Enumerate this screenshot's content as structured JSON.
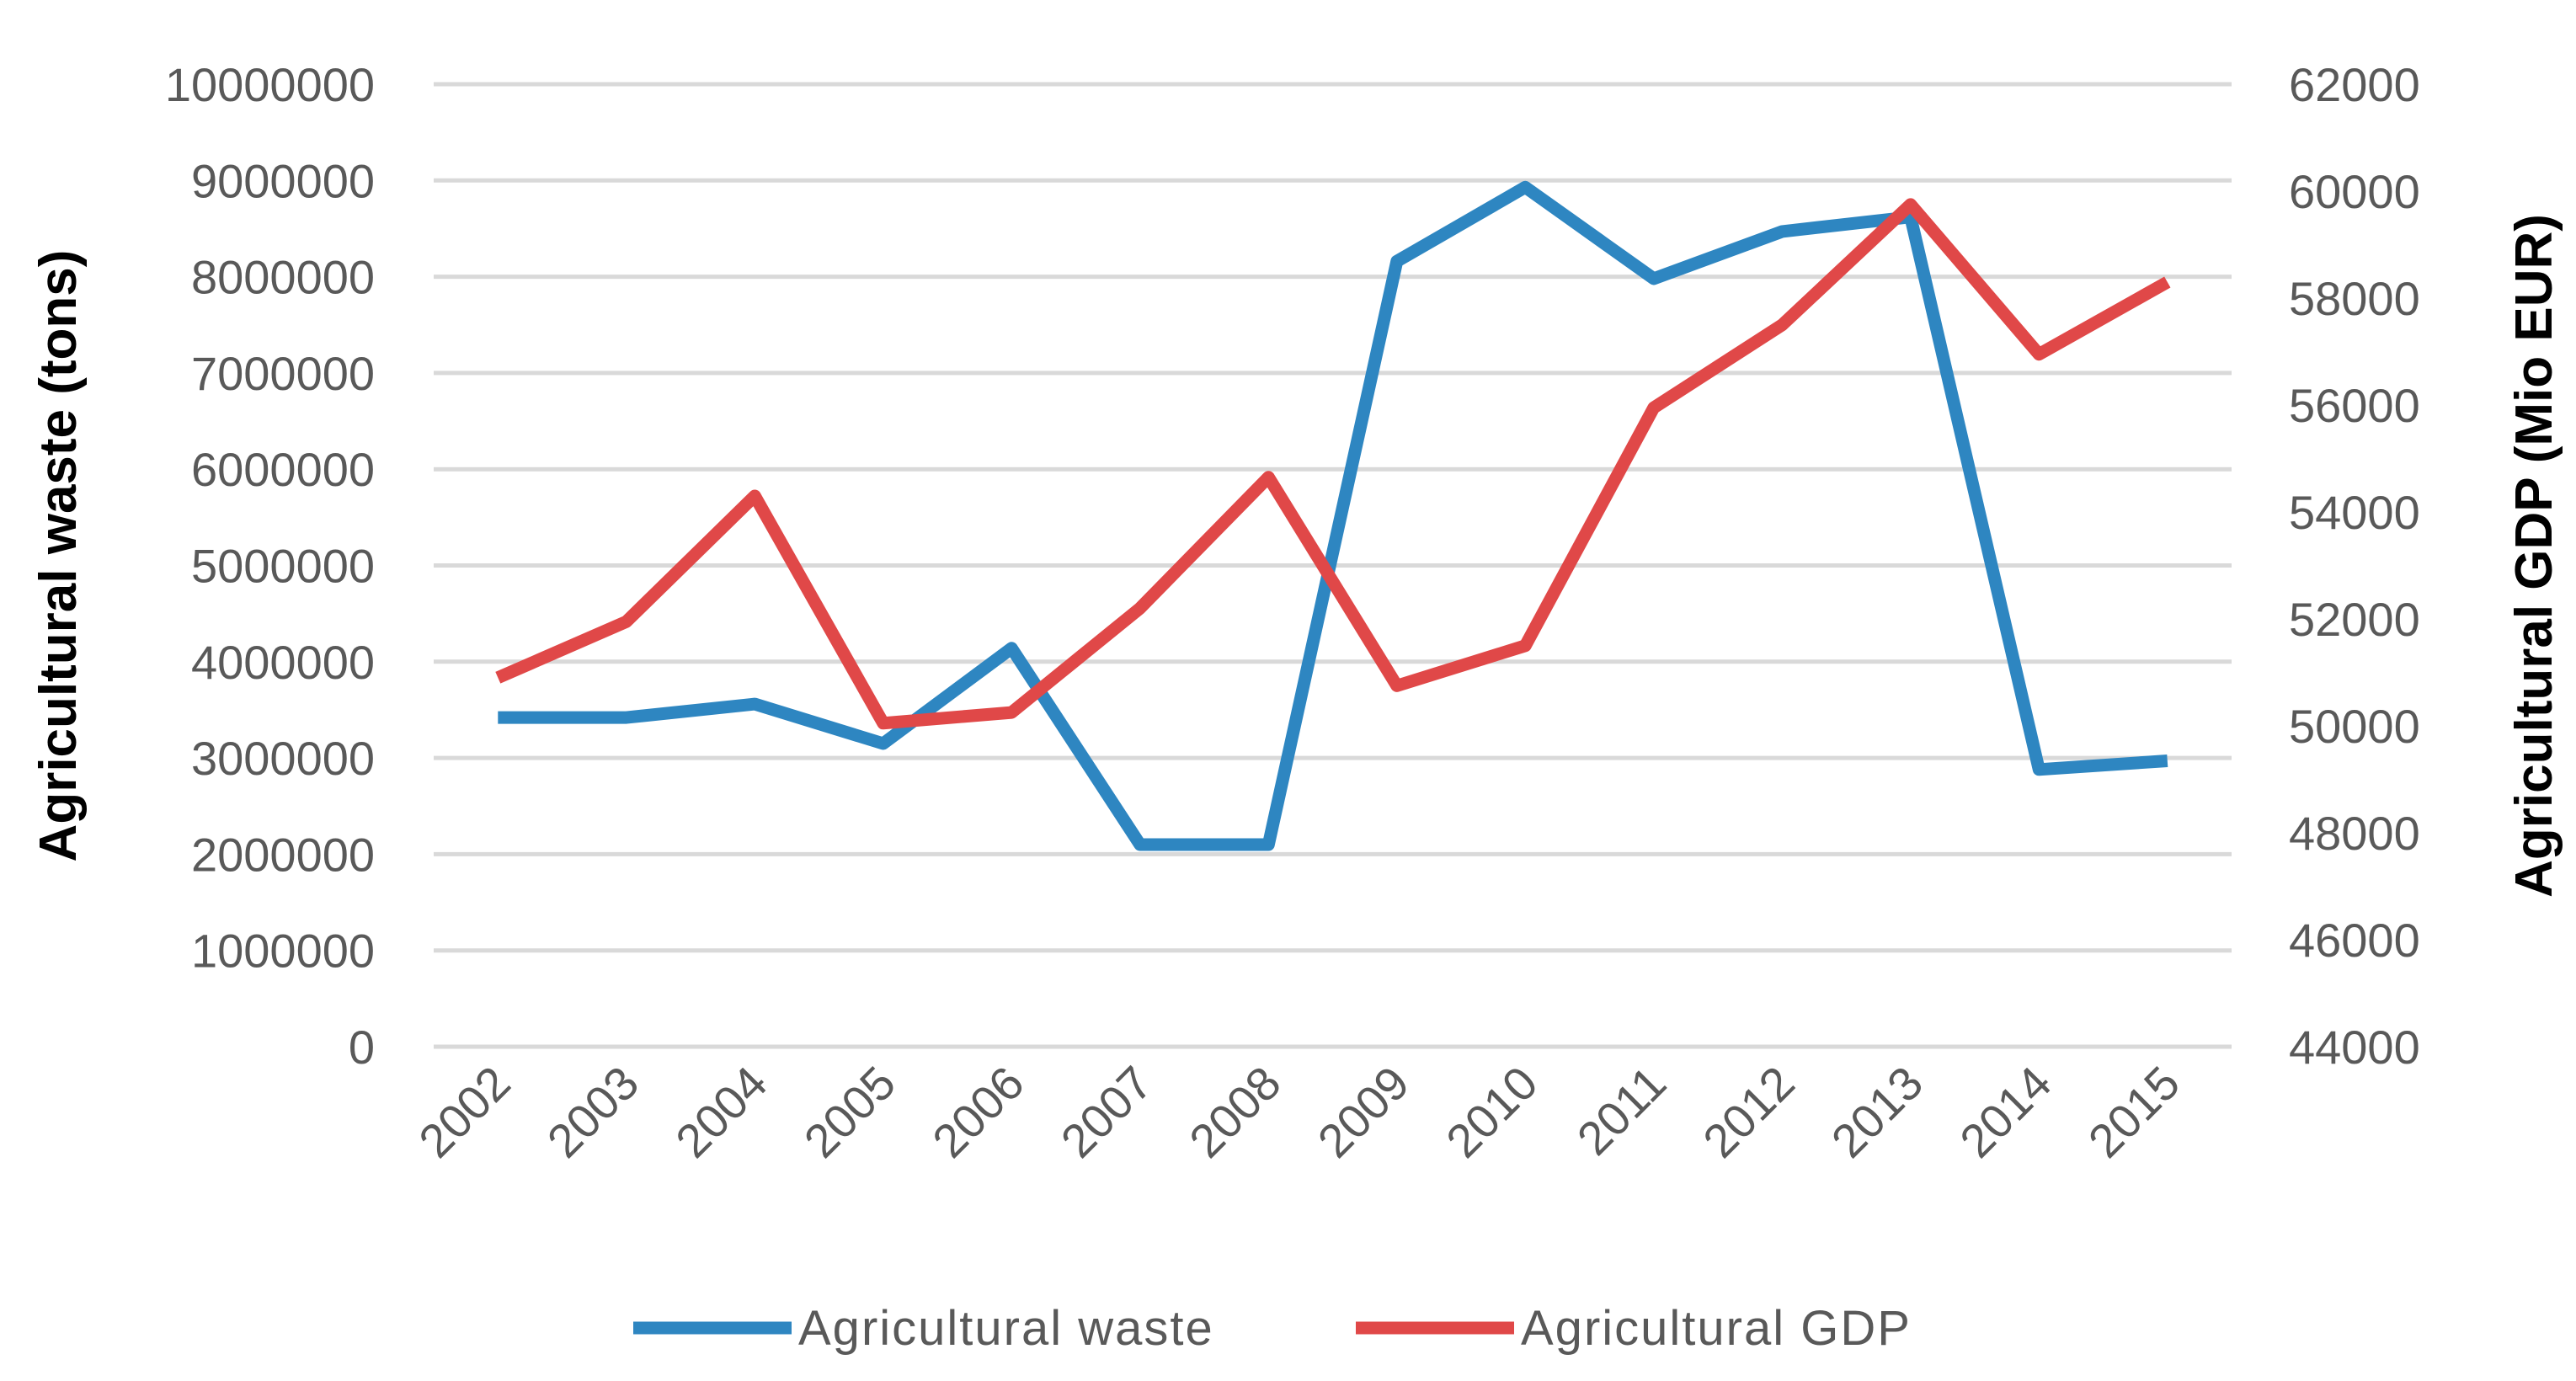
{
  "chart_data": {
    "type": "line",
    "title": "",
    "categories": [
      "2002",
      "2003",
      "2004",
      "2005",
      "2006",
      "2007",
      "2008",
      "2009",
      "2010",
      "2011",
      "2012",
      "2013",
      "2014",
      "2015"
    ],
    "series": [
      {
        "name": "Agricultural waste",
        "axis": "left",
        "color": "#2e86c1",
        "values": [
          3420000,
          3420000,
          3560000,
          3150000,
          4140000,
          2100000,
          2100000,
          8160000,
          8930000,
          7980000,
          8470000,
          8620000,
          2880000,
          2970000
        ]
      },
      {
        "name": "Agricultural GDP",
        "axis": "right",
        "color": "#e04848",
        "values": [
          50900,
          51950,
          54300,
          50050,
          50250,
          52200,
          54650,
          50750,
          51500,
          55950,
          57500,
          59750,
          56950,
          58300
        ]
      }
    ],
    "ylabel_left": "Agricultural waste (tons)",
    "ylabel_right": "Agricultural GDP (Mio EUR)",
    "ylim_left": [
      0,
      10000000
    ],
    "ylim_right": [
      44000,
      62000
    ],
    "yticks_left": [
      "0",
      "1000000",
      "2000000",
      "3000000",
      "4000000",
      "5000000",
      "6000000",
      "7000000",
      "8000000",
      "9000000",
      "10000000"
    ],
    "yticks_right": [
      "44000",
      "46000",
      "48000",
      "50000",
      "52000",
      "54000",
      "56000",
      "58000",
      "60000",
      "62000"
    ],
    "legend": [
      "Agricultural waste",
      "Agricultural GDP"
    ],
    "legend_position": "bottom",
    "grid": true
  }
}
